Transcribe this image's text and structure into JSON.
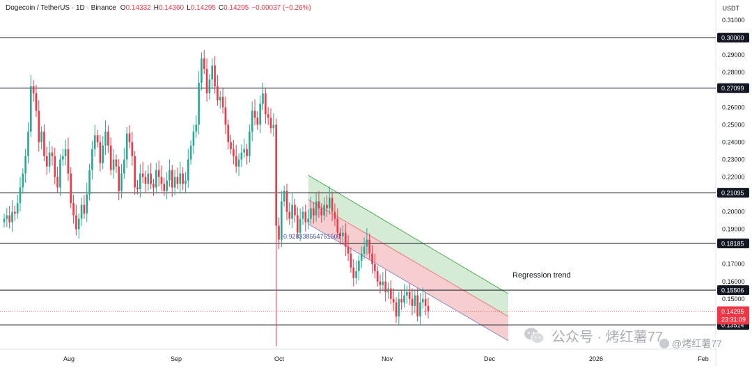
{
  "header": {
    "symbol": "Dogecoin / TetherUS · 1D · Binance",
    "ohlc": [
      {
        "key": "O",
        "value": "0.14332"
      },
      {
        "key": "H",
        "value": "0.14360"
      },
      {
        "key": "L",
        "value": "0.14295"
      },
      {
        "key": "C",
        "value": "0.14295"
      }
    ],
    "change": "−0.00037 (−0.26%)"
  },
  "axis": {
    "currency": "USDT",
    "price_ticks": [
      "0.31000",
      "0.29000",
      "0.28000",
      "0.26000",
      "0.25000",
      "0.24000",
      "0.23000",
      "0.22000",
      "0.20000",
      "0.19000",
      "0.17000",
      "0.16000",
      "0.15000"
    ],
    "highlighted_levels": [
      "0.30000",
      "0.27099",
      "0.21095",
      "0.18185",
      "0.15506",
      "0.13514"
    ],
    "current_price": "0.14295",
    "countdown": "23:31:09",
    "time_labels": [
      "Aug",
      "Sep",
      "Oct",
      "Nov",
      "Dec",
      "2026",
      "Feb"
    ]
  },
  "annotations": {
    "regression_label": "Regression trend",
    "pearson_label": "0.928338554751501"
  },
  "watermark": {
    "main": "公众号 · 烤红薯77",
    "small": "@烤红薯77"
  },
  "colors": {
    "up": "#22ab94",
    "down": "#f23645",
    "channel_upper_fill": "#cfe8cf",
    "channel_lower_fill": "#f5c6c8",
    "horizontal_line": "#131722",
    "label_bg": "#131722"
  },
  "chart_data": {
    "type": "candlestick",
    "title": "Dogecoin / TetherUS · 1D · Binance",
    "ylim": [
      0.122,
      0.312
    ],
    "horizontal_levels": [
      0.3,
      0.27099,
      0.21095,
      0.18185,
      0.15506,
      0.13514
    ],
    "current_price": 0.14295,
    "regression_channel": {
      "start_day": 114,
      "end_day": 189,
      "upper": [
        0.221,
        0.153
      ],
      "middle": [
        0.207,
        0.14
      ],
      "lower": [
        0.193,
        0.126
      ]
    },
    "closes": [
      0.196,
      0.198,
      0.194,
      0.2,
      0.199,
      0.205,
      0.214,
      0.222,
      0.232,
      0.246,
      0.272,
      0.268,
      0.258,
      0.24,
      0.246,
      0.232,
      0.226,
      0.234,
      0.232,
      0.22,
      0.214,
      0.23,
      0.232,
      0.236,
      0.222,
      0.205,
      0.198,
      0.19,
      0.196,
      0.204,
      0.199,
      0.21,
      0.224,
      0.236,
      0.244,
      0.24,
      0.228,
      0.238,
      0.246,
      0.238,
      0.224,
      0.23,
      0.226,
      0.212,
      0.222,
      0.23,
      0.245,
      0.24,
      0.232,
      0.214,
      0.213,
      0.222,
      0.22,
      0.216,
      0.222,
      0.216,
      0.214,
      0.224,
      0.22,
      0.216,
      0.212,
      0.218,
      0.224,
      0.214,
      0.22,
      0.216,
      0.222,
      0.216,
      0.218,
      0.23,
      0.238,
      0.246,
      0.25,
      0.274,
      0.288,
      0.282,
      0.268,
      0.276,
      0.284,
      0.272,
      0.264,
      0.266,
      0.26,
      0.25,
      0.24,
      0.236,
      0.232,
      0.226,
      0.23,
      0.234,
      0.236,
      0.232,
      0.246,
      0.258,
      0.254,
      0.25,
      0.262,
      0.268,
      0.256,
      0.254,
      0.248,
      0.25,
      0.192,
      0.184,
      0.206,
      0.212,
      0.2,
      0.196,
      0.204,
      0.198,
      0.188,
      0.196,
      0.2,
      0.194,
      0.196,
      0.202,
      0.198,
      0.206,
      0.202,
      0.198,
      0.204,
      0.202,
      0.208,
      0.2,
      0.196,
      0.188,
      0.186,
      0.188,
      0.18,
      0.176,
      0.168,
      0.162,
      0.166,
      0.172,
      0.176,
      0.18,
      0.184,
      0.176,
      0.17,
      0.166,
      0.16,
      0.158,
      0.16,
      0.154,
      0.156,
      0.15,
      0.148,
      0.14,
      0.15,
      0.148,
      0.152,
      0.154,
      0.15,
      0.146,
      0.152,
      0.14,
      0.148,
      0.15,
      0.146,
      0.143
    ]
  }
}
